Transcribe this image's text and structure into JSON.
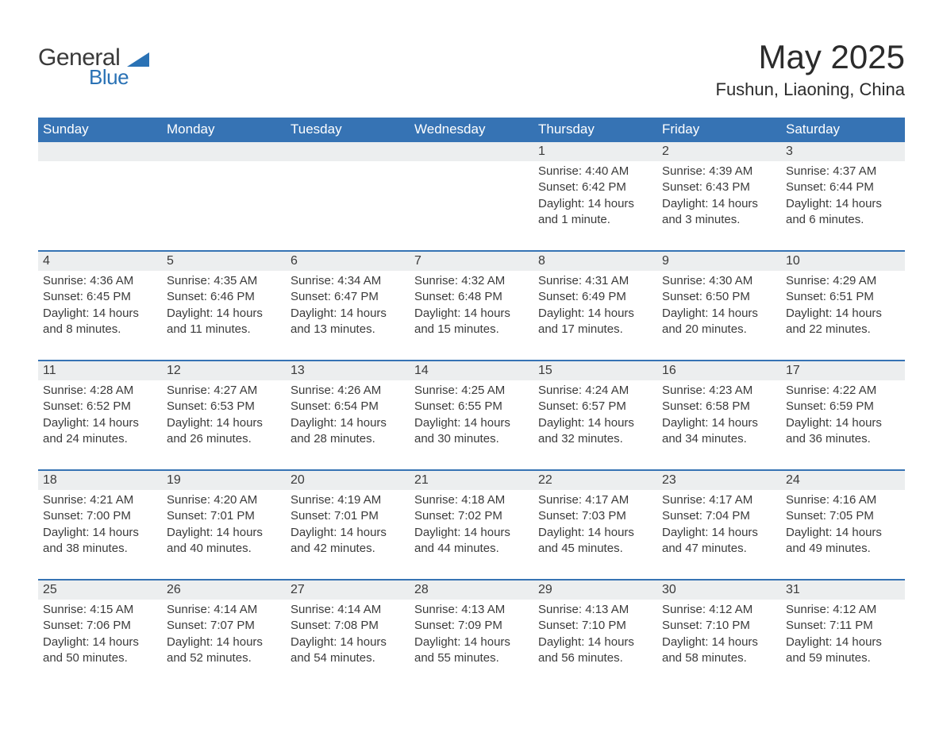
{
  "brand": {
    "name_part1": "General",
    "name_part2": "Blue",
    "text_color": "#3a3a3a",
    "accent_color": "#2a72b5"
  },
  "title": "May 2025",
  "location": "Fushun, Liaoning, China",
  "colors": {
    "header_bg": "#3673b4",
    "header_text": "#ffffff",
    "daynum_bg": "#eceeef",
    "body_text": "#3b3b3b",
    "page_bg": "#ffffff",
    "rule": "#3673b4"
  },
  "typography": {
    "title_fontsize": 42,
    "location_fontsize": 22,
    "header_fontsize": 17,
    "cell_fontsize": 15
  },
  "layout": {
    "columns": 7,
    "column_width_pct": 14.2857
  },
  "weekdays": [
    "Sunday",
    "Monday",
    "Tuesday",
    "Wednesday",
    "Thursday",
    "Friday",
    "Saturday"
  ],
  "weeks": [
    {
      "days": [
        {
          "n": "",
          "sunrise": "",
          "sunset": "",
          "daylight": ""
        },
        {
          "n": "",
          "sunrise": "",
          "sunset": "",
          "daylight": ""
        },
        {
          "n": "",
          "sunrise": "",
          "sunset": "",
          "daylight": ""
        },
        {
          "n": "",
          "sunrise": "",
          "sunset": "",
          "daylight": ""
        },
        {
          "n": "1",
          "sunrise": "Sunrise: 4:40 AM",
          "sunset": "Sunset: 6:42 PM",
          "daylight": "Daylight: 14 hours and 1 minute."
        },
        {
          "n": "2",
          "sunrise": "Sunrise: 4:39 AM",
          "sunset": "Sunset: 6:43 PM",
          "daylight": "Daylight: 14 hours and 3 minutes."
        },
        {
          "n": "3",
          "sunrise": "Sunrise: 4:37 AM",
          "sunset": "Sunset: 6:44 PM",
          "daylight": "Daylight: 14 hours and 6 minutes."
        }
      ]
    },
    {
      "days": [
        {
          "n": "4",
          "sunrise": "Sunrise: 4:36 AM",
          "sunset": "Sunset: 6:45 PM",
          "daylight": "Daylight: 14 hours and 8 minutes."
        },
        {
          "n": "5",
          "sunrise": "Sunrise: 4:35 AM",
          "sunset": "Sunset: 6:46 PM",
          "daylight": "Daylight: 14 hours and 11 minutes."
        },
        {
          "n": "6",
          "sunrise": "Sunrise: 4:34 AM",
          "sunset": "Sunset: 6:47 PM",
          "daylight": "Daylight: 14 hours and 13 minutes."
        },
        {
          "n": "7",
          "sunrise": "Sunrise: 4:32 AM",
          "sunset": "Sunset: 6:48 PM",
          "daylight": "Daylight: 14 hours and 15 minutes."
        },
        {
          "n": "8",
          "sunrise": "Sunrise: 4:31 AM",
          "sunset": "Sunset: 6:49 PM",
          "daylight": "Daylight: 14 hours and 17 minutes."
        },
        {
          "n": "9",
          "sunrise": "Sunrise: 4:30 AM",
          "sunset": "Sunset: 6:50 PM",
          "daylight": "Daylight: 14 hours and 20 minutes."
        },
        {
          "n": "10",
          "sunrise": "Sunrise: 4:29 AM",
          "sunset": "Sunset: 6:51 PM",
          "daylight": "Daylight: 14 hours and 22 minutes."
        }
      ]
    },
    {
      "days": [
        {
          "n": "11",
          "sunrise": "Sunrise: 4:28 AM",
          "sunset": "Sunset: 6:52 PM",
          "daylight": "Daylight: 14 hours and 24 minutes."
        },
        {
          "n": "12",
          "sunrise": "Sunrise: 4:27 AM",
          "sunset": "Sunset: 6:53 PM",
          "daylight": "Daylight: 14 hours and 26 minutes."
        },
        {
          "n": "13",
          "sunrise": "Sunrise: 4:26 AM",
          "sunset": "Sunset: 6:54 PM",
          "daylight": "Daylight: 14 hours and 28 minutes."
        },
        {
          "n": "14",
          "sunrise": "Sunrise: 4:25 AM",
          "sunset": "Sunset: 6:55 PM",
          "daylight": "Daylight: 14 hours and 30 minutes."
        },
        {
          "n": "15",
          "sunrise": "Sunrise: 4:24 AM",
          "sunset": "Sunset: 6:57 PM",
          "daylight": "Daylight: 14 hours and 32 minutes."
        },
        {
          "n": "16",
          "sunrise": "Sunrise: 4:23 AM",
          "sunset": "Sunset: 6:58 PM",
          "daylight": "Daylight: 14 hours and 34 minutes."
        },
        {
          "n": "17",
          "sunrise": "Sunrise: 4:22 AM",
          "sunset": "Sunset: 6:59 PM",
          "daylight": "Daylight: 14 hours and 36 minutes."
        }
      ]
    },
    {
      "days": [
        {
          "n": "18",
          "sunrise": "Sunrise: 4:21 AM",
          "sunset": "Sunset: 7:00 PM",
          "daylight": "Daylight: 14 hours and 38 minutes."
        },
        {
          "n": "19",
          "sunrise": "Sunrise: 4:20 AM",
          "sunset": "Sunset: 7:01 PM",
          "daylight": "Daylight: 14 hours and 40 minutes."
        },
        {
          "n": "20",
          "sunrise": "Sunrise: 4:19 AM",
          "sunset": "Sunset: 7:01 PM",
          "daylight": "Daylight: 14 hours and 42 minutes."
        },
        {
          "n": "21",
          "sunrise": "Sunrise: 4:18 AM",
          "sunset": "Sunset: 7:02 PM",
          "daylight": "Daylight: 14 hours and 44 minutes."
        },
        {
          "n": "22",
          "sunrise": "Sunrise: 4:17 AM",
          "sunset": "Sunset: 7:03 PM",
          "daylight": "Daylight: 14 hours and 45 minutes."
        },
        {
          "n": "23",
          "sunrise": "Sunrise: 4:17 AM",
          "sunset": "Sunset: 7:04 PM",
          "daylight": "Daylight: 14 hours and 47 minutes."
        },
        {
          "n": "24",
          "sunrise": "Sunrise: 4:16 AM",
          "sunset": "Sunset: 7:05 PM",
          "daylight": "Daylight: 14 hours and 49 minutes."
        }
      ]
    },
    {
      "days": [
        {
          "n": "25",
          "sunrise": "Sunrise: 4:15 AM",
          "sunset": "Sunset: 7:06 PM",
          "daylight": "Daylight: 14 hours and 50 minutes."
        },
        {
          "n": "26",
          "sunrise": "Sunrise: 4:14 AM",
          "sunset": "Sunset: 7:07 PM",
          "daylight": "Daylight: 14 hours and 52 minutes."
        },
        {
          "n": "27",
          "sunrise": "Sunrise: 4:14 AM",
          "sunset": "Sunset: 7:08 PM",
          "daylight": "Daylight: 14 hours and 54 minutes."
        },
        {
          "n": "28",
          "sunrise": "Sunrise: 4:13 AM",
          "sunset": "Sunset: 7:09 PM",
          "daylight": "Daylight: 14 hours and 55 minutes."
        },
        {
          "n": "29",
          "sunrise": "Sunrise: 4:13 AM",
          "sunset": "Sunset: 7:10 PM",
          "daylight": "Daylight: 14 hours and 56 minutes."
        },
        {
          "n": "30",
          "sunrise": "Sunrise: 4:12 AM",
          "sunset": "Sunset: 7:10 PM",
          "daylight": "Daylight: 14 hours and 58 minutes."
        },
        {
          "n": "31",
          "sunrise": "Sunrise: 4:12 AM",
          "sunset": "Sunset: 7:11 PM",
          "daylight": "Daylight: 14 hours and 59 minutes."
        }
      ]
    }
  ]
}
